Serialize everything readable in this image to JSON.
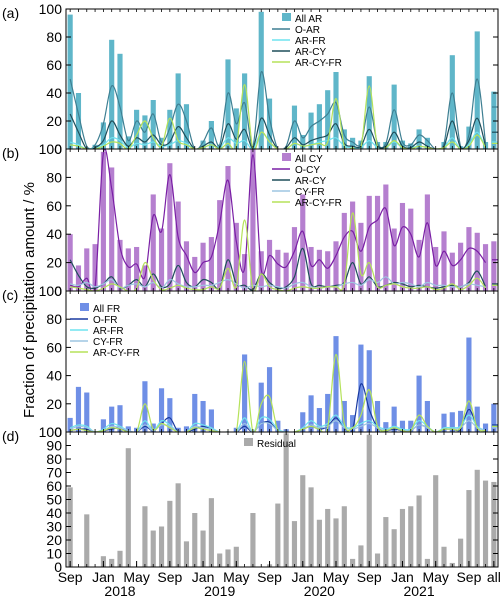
{
  "figure": {
    "ylabel": "Fraction of precipitation amount / %",
    "x_tick_labels": [
      "Sep",
      "Jan",
      "May",
      "Sep",
      "Jan",
      "May",
      "Sep",
      "Jan",
      "May",
      "Sep",
      "Jan",
      "May",
      "Sep",
      "all"
    ],
    "x_tick_months": [
      0,
      4,
      8,
      12,
      16,
      20,
      24,
      28,
      32,
      36,
      40,
      44,
      48,
      51
    ],
    "year_labels": [
      "2018",
      "2019",
      "2020",
      "2021"
    ],
    "year_label_months": [
      6,
      18,
      30,
      42
    ]
  },
  "chart_data": [
    {
      "type": "bar",
      "panel_label": "(a)",
      "ylim": [
        0,
        100
      ],
      "yticks": [
        0,
        20,
        40,
        60,
        80,
        100
      ],
      "bar_series": {
        "name": "All AR",
        "color": "#5fb6c9",
        "values": [
          96,
          40,
          1,
          3,
          19,
          78,
          68,
          9,
          28,
          24,
          35,
          8,
          28,
          54,
          32,
          0,
          6,
          20,
          3,
          64,
          29,
          54,
          2,
          98,
          36,
          0,
          1,
          31,
          10,
          26,
          32,
          42,
          55,
          14,
          8,
          6,
          52,
          5,
          5,
          46,
          6,
          4,
          14,
          8,
          0,
          5,
          67,
          2,
          16,
          84,
          5,
          41
        ],
        "all_value": 41
      },
      "line_series": [
        {
          "name": "O-AR",
          "color": "#3e7f92",
          "values": [
            50,
            25,
            2,
            3,
            18,
            45,
            30,
            6,
            20,
            12,
            25,
            5,
            15,
            32,
            20,
            0,
            5,
            15,
            3,
            40,
            18,
            33,
            2,
            55,
            22,
            0,
            2,
            20,
            8,
            16,
            20,
            25,
            33,
            10,
            5,
            4,
            30,
            4,
            4,
            28,
            5,
            3,
            10,
            6,
            0,
            4,
            40,
            2,
            10,
            50,
            4,
            30
          ]
        },
        {
          "name": "AR-FR",
          "color": "#6fe3ef",
          "values": [
            5,
            3,
            0,
            1,
            3,
            8,
            6,
            1,
            4,
            3,
            5,
            2,
            3,
            6,
            4,
            0,
            1,
            3,
            1,
            8,
            4,
            6,
            0,
            12,
            5,
            0,
            0,
            4,
            2,
            3,
            5,
            6,
            8,
            2,
            1,
            1,
            6,
            1,
            1,
            5,
            1,
            1,
            2,
            1,
            0,
            1,
            8,
            0,
            3,
            12,
            1,
            5
          ]
        },
        {
          "name": "AR-CY",
          "color": "#1f4e5a",
          "values": [
            25,
            12,
            0,
            1,
            6,
            20,
            10,
            2,
            8,
            5,
            10,
            3,
            5,
            16,
            8,
            0,
            2,
            5,
            1,
            18,
            7,
            14,
            1,
            22,
            10,
            0,
            1,
            8,
            3,
            6,
            8,
            10,
            18,
            4,
            2,
            2,
            14,
            2,
            2,
            12,
            2,
            1,
            5,
            2,
            0,
            2,
            20,
            1,
            6,
            22,
            2,
            12
          ]
        },
        {
          "name": "AR-CY-FR",
          "color": "#b5e25a",
          "values": [
            3,
            2,
            0,
            0,
            2,
            5,
            4,
            0,
            10,
            20,
            8,
            2,
            22,
            6,
            3,
            0,
            1,
            3,
            0,
            4,
            2,
            46,
            0,
            12,
            5,
            0,
            0,
            4,
            2,
            3,
            4,
            5,
            36,
            2,
            1,
            1,
            45,
            1,
            1,
            6,
            1,
            0,
            2,
            1,
            0,
            1,
            5,
            0,
            2,
            10,
            1,
            4
          ]
        }
      ]
    },
    {
      "type": "bar",
      "panel_label": "(b)",
      "ylim": [
        0,
        100
      ],
      "yticks": [
        0,
        20,
        40,
        60,
        80,
        100
      ],
      "bar_series": {
        "name": "All CY",
        "color": "#b57fcf",
        "values": [
          40,
          18,
          30,
          33,
          98,
          87,
          36,
          30,
          31,
          18,
          68,
          44,
          90,
          63,
          35,
          24,
          34,
          38,
          64,
          88,
          48,
          26,
          100,
          28,
          36,
          29,
          27,
          45,
          68,
          31,
          29,
          28,
          35,
          55,
          63,
          48,
          67,
          67,
          75,
          44,
          62,
          58,
          36,
          68,
          31,
          42,
          27,
          34,
          45,
          41,
          33,
          35
        ],
        "all_value": 35
      },
      "line_series": [
        {
          "name": "O-CY",
          "color": "#7a1fa5",
          "values": [
            4,
            3,
            9,
            3,
            97,
            72,
            31,
            17,
            19,
            10,
            53,
            42,
            82,
            38,
            25,
            13,
            20,
            24,
            48,
            78,
            35,
            16,
            96,
            15,
            25,
            19,
            17,
            28,
            42,
            18,
            22,
            16,
            25,
            38,
            42,
            28,
            45,
            50,
            58,
            32,
            45,
            40,
            24,
            48,
            18,
            28,
            18,
            22,
            30,
            28,
            20,
            22
          ]
        },
        {
          "name": "AR-CY",
          "color": "#1f4e5a",
          "values": [
            22,
            11,
            3,
            2,
            5,
            10,
            2,
            4,
            8,
            3,
            12,
            3,
            5,
            18,
            6,
            3,
            8,
            6,
            2,
            22,
            5,
            4,
            1,
            12,
            6,
            2,
            3,
            10,
            30,
            5,
            4,
            3,
            4,
            6,
            20,
            5,
            10,
            3,
            4,
            6,
            5,
            3,
            4,
            3,
            2,
            3,
            4,
            3,
            6,
            14,
            3,
            5
          ]
        },
        {
          "name": "CY-FR",
          "color": "#9ec6e2",
          "values": [
            5,
            4,
            6,
            3,
            5,
            8,
            2,
            4,
            5,
            3,
            6,
            2,
            8,
            5,
            3,
            3,
            4,
            4,
            6,
            8,
            5,
            2,
            4,
            3,
            4,
            3,
            2,
            5,
            6,
            3,
            2,
            3,
            3,
            5,
            6,
            4,
            8,
            6,
            10,
            5,
            6,
            5,
            3,
            6,
            4,
            4,
            3,
            3,
            5,
            4,
            3,
            4
          ]
        },
        {
          "name": "AR-CY-FR",
          "color": "#b5e25a",
          "values": [
            3,
            2,
            1,
            0,
            2,
            5,
            3,
            0,
            2,
            20,
            8,
            1,
            2,
            4,
            2,
            1,
            1,
            3,
            2,
            16,
            3,
            50,
            1,
            12,
            3,
            1,
            0,
            2,
            3,
            2,
            2,
            3,
            3,
            5,
            55,
            12,
            20,
            3,
            4,
            5,
            3,
            2,
            2,
            3,
            1,
            2,
            5,
            1,
            4,
            9,
            2,
            4
          ]
        }
      ]
    },
    {
      "type": "bar",
      "panel_label": "(c)",
      "ylim": [
        0,
        100
      ],
      "yticks": [
        0,
        20,
        40,
        60,
        80,
        100
      ],
      "bar_series": {
        "name": "All FR",
        "color": "#6f8fe6",
        "values": [
          10,
          32,
          28,
          0,
          9,
          18,
          19,
          4,
          3,
          36,
          6,
          31,
          24,
          3,
          4,
          27,
          22,
          16,
          0,
          0,
          3,
          55,
          0,
          35,
          46,
          8,
          2,
          0,
          14,
          26,
          17,
          27,
          68,
          22,
          12,
          62,
          58,
          22,
          7,
          18,
          8,
          8,
          40,
          22,
          0,
          13,
          14,
          15,
          67,
          18,
          6,
          20
        ],
        "all_value": 20
      },
      "line_series": [
        {
          "name": "O-FR",
          "color": "#1a3aa0",
          "values": [
            1,
            2,
            2,
            0,
            1,
            2,
            3,
            0,
            0,
            4,
            1,
            6,
            10,
            0,
            0,
            2,
            4,
            2,
            0,
            0,
            0,
            4,
            0,
            6,
            7,
            1,
            0,
            0,
            2,
            4,
            2,
            4,
            10,
            3,
            2,
            34,
            16,
            3,
            1,
            2,
            1,
            1,
            5,
            3,
            0,
            2,
            2,
            2,
            16,
            4,
            1,
            5
          ]
        },
        {
          "name": "AR-FR",
          "color": "#6fe3ef",
          "values": [
            3,
            5,
            4,
            0,
            2,
            6,
            4,
            1,
            0,
            8,
            1,
            8,
            5,
            0,
            0,
            6,
            5,
            3,
            0,
            0,
            0,
            10,
            0,
            10,
            9,
            2,
            0,
            0,
            3,
            8,
            4,
            6,
            12,
            4,
            3,
            6,
            8,
            4,
            2,
            4,
            2,
            2,
            8,
            4,
            0,
            3,
            3,
            4,
            12,
            4,
            1,
            4
          ]
        },
        {
          "name": "CY-FR",
          "color": "#9ec6e2",
          "values": [
            2,
            4,
            3,
            0,
            1,
            4,
            3,
            1,
            0,
            5,
            1,
            5,
            4,
            0,
            0,
            4,
            3,
            2,
            0,
            0,
            0,
            6,
            0,
            6,
            6,
            1,
            0,
            0,
            2,
            5,
            3,
            4,
            8,
            3,
            2,
            4,
            6,
            3,
            1,
            3,
            1,
            1,
            5,
            3,
            0,
            2,
            2,
            3,
            8,
            3,
            1,
            3
          ]
        },
        {
          "name": "AR-CY-FR",
          "color": "#b5e25a",
          "values": [
            1,
            2,
            1,
            0,
            1,
            3,
            2,
            0,
            0,
            20,
            2,
            6,
            3,
            0,
            0,
            3,
            2,
            1,
            0,
            0,
            0,
            50,
            0,
            20,
            25,
            1,
            0,
            0,
            2,
            4,
            2,
            3,
            55,
            6,
            3,
            12,
            30,
            4,
            1,
            3,
            1,
            1,
            12,
            4,
            0,
            2,
            2,
            3,
            22,
            3,
            1,
            4
          ]
        }
      ]
    },
    {
      "type": "bar",
      "panel_label": "(d)",
      "ylim": [
        0,
        100
      ],
      "yticks": [
        0,
        10,
        20,
        30,
        40,
        50,
        60,
        70,
        80,
        90,
        100
      ],
      "bar_series": {
        "name": "Residual",
        "color": "#aaaaaa",
        "values": [
          59,
          0,
          39,
          0,
          8,
          6,
          12,
          88,
          0,
          45,
          27,
          30,
          49,
          62,
          19,
          40,
          27,
          51,
          10,
          13,
          15,
          0,
          40,
          0,
          2,
          47,
          99,
          34,
          68,
          59,
          35,
          43,
          36,
          45,
          6,
          16,
          98,
          10,
          37,
          28,
          43,
          45,
          53,
          6,
          68,
          15,
          3,
          21,
          57,
          72,
          64,
          63
        ],
        "all_value": 63
      },
      "line_series": []
    }
  ]
}
